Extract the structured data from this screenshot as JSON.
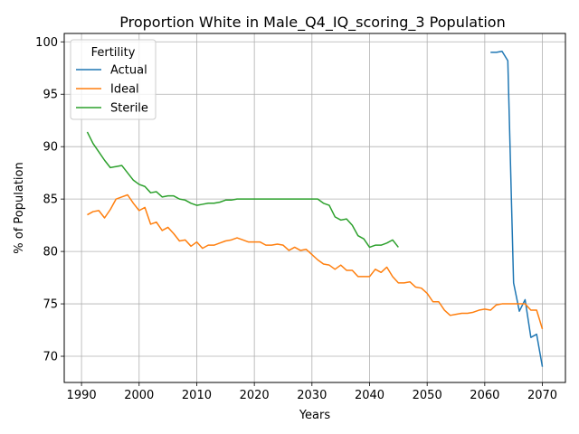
{
  "chart_data": {
    "type": "line",
    "title": "Proportion White in Male_Q4_IQ_scoring_3 Population",
    "xlabel": "Years",
    "ylabel": "% of Population",
    "xlim": [
      1987,
      2074
    ],
    "ylim": [
      67.5,
      100.8
    ],
    "xticks": [
      1990,
      2000,
      2010,
      2020,
      2030,
      2040,
      2050,
      2060,
      2070
    ],
    "yticks": [
      70,
      75,
      80,
      85,
      90,
      95,
      100
    ],
    "grid": true,
    "legend": {
      "title": "Fertility",
      "placement": "top-left"
    },
    "series": [
      {
        "name": "Actual",
        "color": "#1f77b4",
        "x": [
          2061,
          2062,
          2063,
          2064,
          2065,
          2066,
          2067,
          2068,
          2069,
          2070
        ],
        "y": [
          99.0,
          99.0,
          99.1,
          98.2,
          77.0,
          74.3,
          75.4,
          71.8,
          72.1,
          69.0
        ]
      },
      {
        "name": "Ideal",
        "color": "#ff7f0e",
        "x": [
          1991,
          1992,
          1993,
          1994,
          1995,
          1996,
          1997,
          1998,
          1999,
          2000,
          2001,
          2002,
          2003,
          2004,
          2005,
          2006,
          2007,
          2008,
          2009,
          2010,
          2011,
          2012,
          2013,
          2014,
          2015,
          2016,
          2017,
          2018,
          2019,
          2020,
          2021,
          2022,
          2023,
          2024,
          2025,
          2026,
          2027,
          2028,
          2029,
          2030,
          2031,
          2032,
          2033,
          2034,
          2035,
          2036,
          2037,
          2038,
          2039,
          2040,
          2041,
          2042,
          2043,
          2044,
          2045,
          2046,
          2047,
          2048,
          2049,
          2050,
          2051,
          2052,
          2053,
          2054,
          2055,
          2056,
          2057,
          2058,
          2059,
          2060,
          2061,
          2062,
          2063,
          2064,
          2065,
          2066,
          2067,
          2068,
          2069,
          2070
        ],
        "y": [
          83.5,
          83.8,
          83.9,
          83.2,
          84.0,
          85.0,
          85.2,
          85.4,
          84.6,
          83.9,
          84.2,
          82.6,
          82.8,
          82.0,
          82.3,
          81.7,
          81.0,
          81.1,
          80.5,
          80.9,
          80.3,
          80.6,
          80.6,
          80.8,
          81.0,
          81.1,
          81.3,
          81.1,
          80.9,
          80.9,
          80.9,
          80.6,
          80.6,
          80.7,
          80.6,
          80.1,
          80.4,
          80.1,
          80.2,
          79.7,
          79.2,
          78.8,
          78.7,
          78.3,
          78.7,
          78.2,
          78.2,
          77.6,
          77.6,
          77.6,
          78.3,
          78.0,
          78.5,
          77.6,
          77.0,
          77.0,
          77.1,
          76.6,
          76.5,
          76.0,
          75.2,
          75.2,
          74.4,
          73.9,
          74.0,
          74.1,
          74.1,
          74.2,
          74.4,
          74.5,
          74.4,
          74.9,
          75.0,
          75.0,
          75.0,
          75.0,
          75.0,
          74.4,
          74.4,
          72.6
        ]
      },
      {
        "name": "Sterile",
        "color": "#2ca02c",
        "x": [
          1991,
          1992,
          1993,
          1994,
          1995,
          1996,
          1997,
          1998,
          1999,
          2000,
          2001,
          2002,
          2003,
          2004,
          2005,
          2006,
          2007,
          2008,
          2009,
          2010,
          2011,
          2012,
          2013,
          2014,
          2015,
          2016,
          2017,
          2018,
          2019,
          2020,
          2021,
          2022,
          2023,
          2024,
          2025,
          2026,
          2027,
          2028,
          2029,
          2030,
          2031,
          2032,
          2033,
          2034,
          2035,
          2036,
          2037,
          2038,
          2039,
          2040,
          2041,
          2042,
          2043,
          2044,
          2045
        ],
        "y": [
          91.4,
          90.3,
          89.5,
          88.7,
          88.0,
          88.1,
          88.2,
          87.5,
          86.8,
          86.4,
          86.2,
          85.6,
          85.7,
          85.2,
          85.3,
          85.3,
          85.0,
          84.9,
          84.6,
          84.4,
          84.5,
          84.6,
          84.6,
          84.7,
          84.9,
          84.9,
          85.0,
          85.0,
          85.0,
          85.0,
          85.0,
          85.0,
          85.0,
          85.0,
          85.0,
          85.0,
          85.0,
          85.0,
          85.0,
          85.0,
          85.0,
          84.6,
          84.4,
          83.3,
          83.0,
          83.1,
          82.5,
          81.5,
          81.2,
          80.4,
          80.6,
          80.6,
          80.8,
          81.1,
          80.4
        ]
      }
    ]
  }
}
